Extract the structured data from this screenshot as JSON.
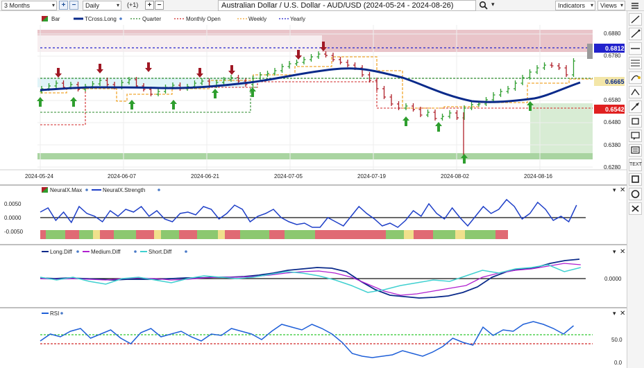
{
  "toolbar": {
    "period": "3 Months",
    "interval": "Daily",
    "offset": "(+1)",
    "title": "Australian Dollar / U.S. Dollar - AUD/USD (2024-05-24 - 2024-08-26)",
    "indicators_label": "Indicators",
    "views_label": "Views"
  },
  "main_panel": {
    "legend": [
      "Bar",
      "TCross.Long",
      "Quarter",
      "Monthly Open",
      "Weekly",
      "Yearly"
    ],
    "price_ticks": [
      "0.6880",
      "0.6780",
      "0.6580",
      "0.6480",
      "0.6380",
      "0.6280"
    ],
    "badges": {
      "yearly": "0.6812",
      "tcross": "0.6665",
      "monthly": "0.6542"
    },
    "date_labels": [
      "2024-05-24",
      "2024-06-07",
      "2024-06-21",
      "2024-07-05",
      "2024-07-19",
      "2024-08-02",
      "2024-08-16"
    ]
  },
  "neural_panel": {
    "legend": [
      "NeuralX.Max",
      "NeuralX.Strength"
    ],
    "ticks": [
      "0.0050",
      "0.0000",
      "-0.0050"
    ]
  },
  "diff_panel": {
    "legend": [
      "Long.Diff",
      "Medium.Diff",
      "Short.Diff"
    ],
    "ticks": [
      "0.0000"
    ]
  },
  "rsi_panel": {
    "legend": [
      "RSI"
    ],
    "ticks": [
      "50.0",
      "0.0"
    ]
  },
  "tools": [
    "draw-line-icon",
    "diagonal-line-icon",
    "horizontal-line-icon",
    "fibonacci-icon",
    "channel-icon",
    "pitchfork-icon",
    "arrow-tool-icon",
    "eraser-icon",
    "note-icon",
    "annotation-icon",
    "text-icon",
    "rectangle-icon",
    "ellipse-icon",
    "delete-all-icon"
  ],
  "colors": {
    "tcross": "#0a2a8a",
    "weekly": "#f0a830",
    "monthly": "#d02828",
    "quarter": "#2a8a2a",
    "yearly": "#2222cc",
    "up_bar": "#2e9e2e",
    "down_bar": "#b0202a",
    "neural": "#1e3fc8",
    "long_diff": "#0a2a8a",
    "medium_diff": "#b020d0",
    "short_diff": "#40d0d0",
    "rsi": "#1e5fd8"
  }
}
